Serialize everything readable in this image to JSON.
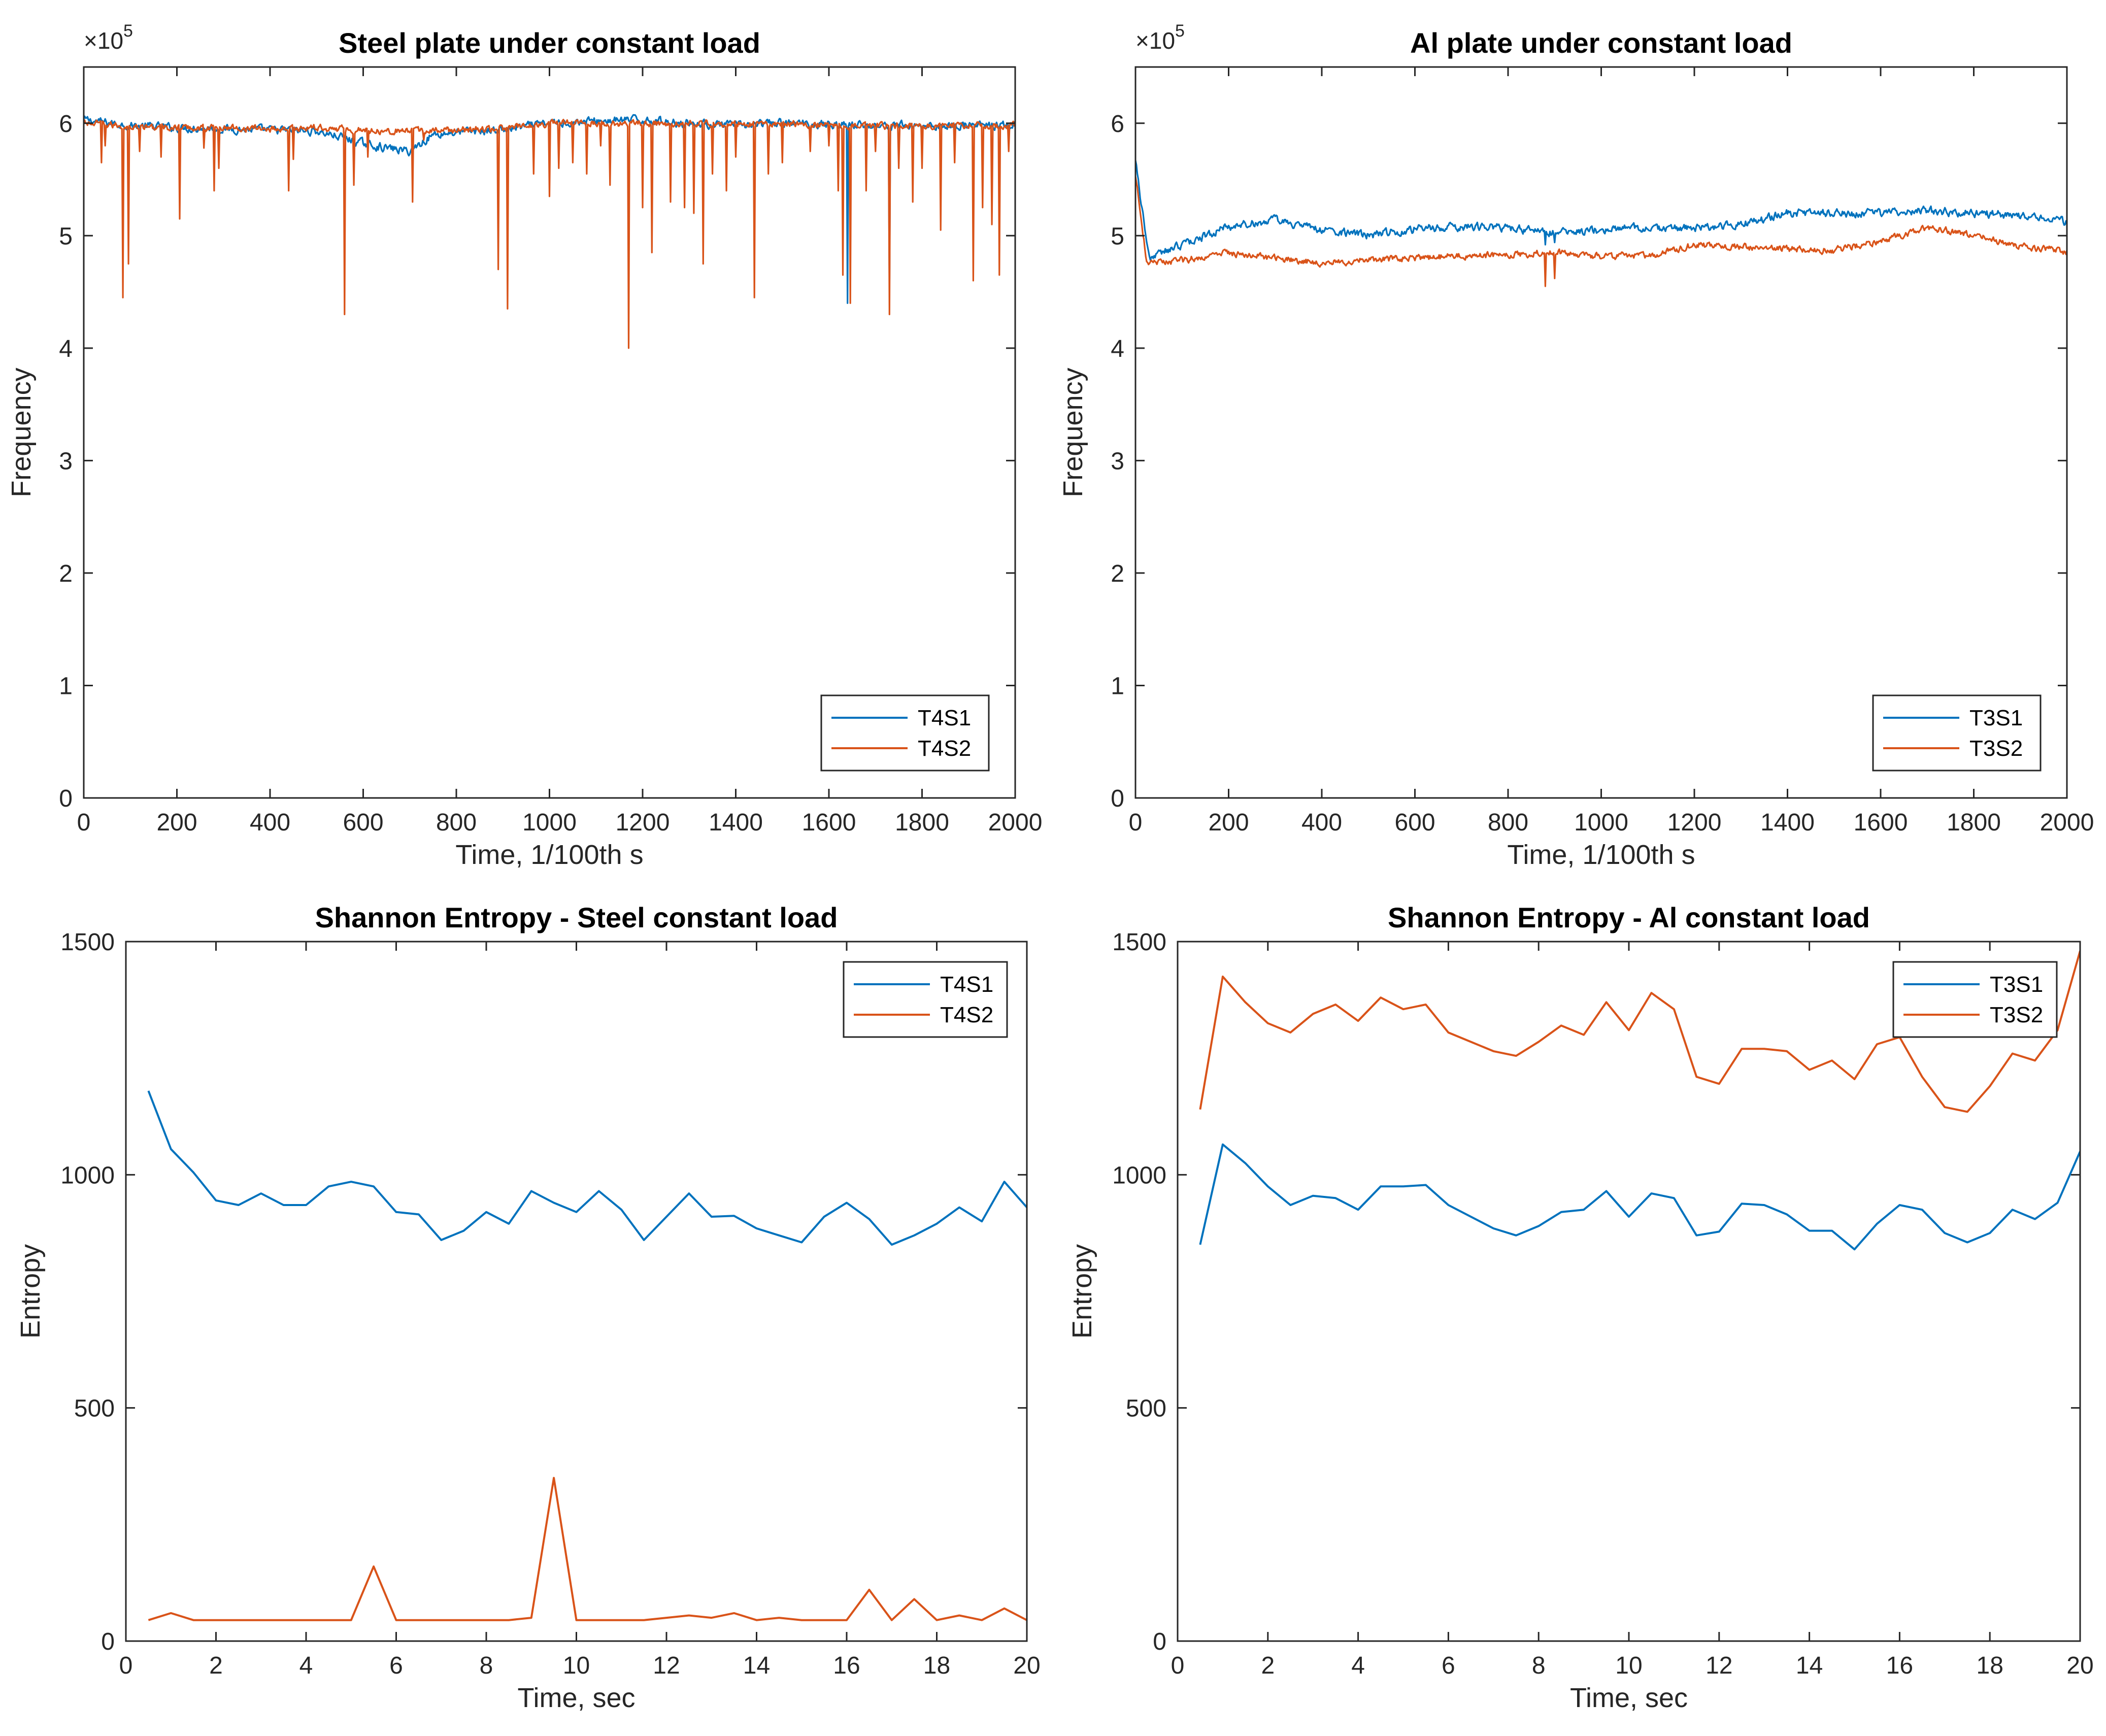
{
  "chart_data": [
    {
      "id": "p1",
      "type": "line",
      "title": "Steel plate under constant load",
      "xlabel": "Time, 1/100th s",
      "ylabel": "Frequency",
      "xlim": [
        0,
        2000
      ],
      "ylim": [
        0,
        650000
      ],
      "xticks": [
        "0",
        "200",
        "400",
        "600",
        "800",
        "1000",
        "1200",
        "1400",
        "1600",
        "1800",
        "2000"
      ],
      "yticks": [
        "0",
        "1",
        "2",
        "3",
        "4",
        "5",
        "6"
      ],
      "y_exponent": "×10⁵",
      "legend_position": "bottom-right",
      "series": [
        {
          "name": "T4S1",
          "color": "#0072BD",
          "baseline": [
            [
              0,
              603000
            ],
            [
              100,
              598000
            ],
            [
              200,
              596000
            ],
            [
              300,
              595000
            ],
            [
              400,
              594000
            ],
            [
              500,
              593000
            ],
            [
              550,
              588000
            ],
            [
              600,
              582000
            ],
            [
              650,
              578000
            ],
            [
              700,
              575000
            ],
            [
              750,
              590000
            ],
            [
              800,
              592000
            ],
            [
              900,
              594000
            ],
            [
              1000,
              600000
            ],
            [
              1100,
              602000
            ],
            [
              1200,
              603000
            ],
            [
              1300,
              600000
            ],
            [
              1400,
              598000
            ],
            [
              1500,
              600000
            ],
            [
              1600,
              599000
            ],
            [
              1700,
              598000
            ],
            [
              1800,
              598000
            ],
            [
              1900,
              598000
            ],
            [
              2000,
              598000
            ]
          ],
          "noise": 6000,
          "spikes": [
            [
              1640,
              440000
            ],
            [
              1730,
              450000
            ]
          ]
        },
        {
          "name": "T4S2",
          "color": "#D95319",
          "baseline": [
            [
              0,
              600000
            ],
            [
              100,
              597000
            ],
            [
              200,
              596000
            ],
            [
              300,
              596000
            ],
            [
              400,
              595000
            ],
            [
              500,
              596000
            ],
            [
              600,
              594000
            ],
            [
              700,
              593000
            ],
            [
              800,
              594000
            ],
            [
              900,
              595000
            ],
            [
              1000,
              600000
            ],
            [
              1100,
              600000
            ],
            [
              1200,
              600000
            ],
            [
              1300,
              600000
            ],
            [
              1400,
              600000
            ],
            [
              1500,
              599000
            ],
            [
              1600,
              599000
            ],
            [
              1700,
              598000
            ],
            [
              1800,
              598000
            ],
            [
              1900,
              598000
            ],
            [
              2000,
              598000
            ]
          ],
          "noise": 5000,
          "spikes": [
            [
              38,
              565000
            ],
            [
              45,
              580000
            ],
            [
              83,
              445000
            ],
            [
              95,
              475000
            ],
            [
              120,
              575000
            ],
            [
              165,
              570000
            ],
            [
              205,
              515000
            ],
            [
              258,
              578000
            ],
            [
              280,
              540000
            ],
            [
              290,
              560000
            ],
            [
              440,
              540000
            ],
            [
              450,
              568000
            ],
            [
              560,
              430000
            ],
            [
              580,
              545000
            ],
            [
              610,
              570000
            ],
            [
              705,
              530000
            ],
            [
              730,
              585000
            ],
            [
              890,
              470000
            ],
            [
              910,
              435000
            ],
            [
              965,
              555000
            ],
            [
              1000,
              535000
            ],
            [
              1020,
              560000
            ],
            [
              1050,
              565000
            ],
            [
              1080,
              555000
            ],
            [
              1110,
              580000
            ],
            [
              1130,
              545000
            ],
            [
              1170,
              400000
            ],
            [
              1200,
              525000
            ],
            [
              1220,
              485000
            ],
            [
              1260,
              530000
            ],
            [
              1290,
              525000
            ],
            [
              1310,
              520000
            ],
            [
              1330,
              475000
            ],
            [
              1350,
              555000
            ],
            [
              1380,
              540000
            ],
            [
              1400,
              570000
            ],
            [
              1440,
              445000
            ],
            [
              1470,
              555000
            ],
            [
              1500,
              565000
            ],
            [
              1560,
              575000
            ],
            [
              1600,
              580000
            ],
            [
              1620,
              540000
            ],
            [
              1630,
              465000
            ],
            [
              1645,
              440000
            ],
            [
              1680,
              540000
            ],
            [
              1700,
              575000
            ],
            [
              1730,
              430000
            ],
            [
              1750,
              560000
            ],
            [
              1780,
              530000
            ],
            [
              1800,
              560000
            ],
            [
              1840,
              505000
            ],
            [
              1870,
              565000
            ],
            [
              1910,
              460000
            ],
            [
              1930,
              525000
            ],
            [
              1950,
              510000
            ],
            [
              1965,
              465000
            ],
            [
              1985,
              575000
            ]
          ]
        }
      ]
    },
    {
      "id": "p2",
      "type": "line",
      "title": "Al plate under constant load",
      "xlabel": "Time, 1/100th s",
      "ylabel": "Frequency",
      "xlim": [
        0,
        2000
      ],
      "ylim": [
        0,
        650000
      ],
      "xticks": [
        "0",
        "200",
        "400",
        "600",
        "800",
        "1000",
        "1200",
        "1400",
        "1600",
        "1800",
        "2000"
      ],
      "yticks": [
        "0",
        "1",
        "2",
        "3",
        "4",
        "5",
        "6"
      ],
      "y_exponent": "×10⁵",
      "legend_position": "bottom-right",
      "series": [
        {
          "name": "T3S1",
          "color": "#0072BD",
          "baseline": [
            [
              0,
              570000
            ],
            [
              15,
              520000
            ],
            [
              30,
              480000
            ],
            [
              100,
              492000
            ],
            [
              200,
              508000
            ],
            [
              300,
              514000
            ],
            [
              400,
              505000
            ],
            [
              500,
              500000
            ],
            [
              600,
              506000
            ],
            [
              700,
              508000
            ],
            [
              800,
              507000
            ],
            [
              900,
              502000
            ],
            [
              1000,
              505000
            ],
            [
              1100,
              507000
            ],
            [
              1200,
              506000
            ],
            [
              1300,
              510000
            ],
            [
              1400,
              520000
            ],
            [
              1500,
              520000
            ],
            [
              1600,
              520000
            ],
            [
              1700,
              522000
            ],
            [
              1800,
              520000
            ],
            [
              1900,
              518000
            ],
            [
              2000,
              512000
            ]
          ],
          "noise": 6000,
          "spikes": [
            [
              880,
              492000
            ],
            [
              900,
              494000
            ]
          ]
        },
        {
          "name": "T3S2",
          "color": "#D95319",
          "baseline": [
            [
              0,
              555000
            ],
            [
              10,
              520000
            ],
            [
              25,
              475000
            ],
            [
              100,
              478000
            ],
            [
              200,
              485000
            ],
            [
              300,
              480000
            ],
            [
              400,
              476000
            ],
            [
              500,
              478000
            ],
            [
              600,
              480000
            ],
            [
              700,
              482000
            ],
            [
              800,
              483000
            ],
            [
              900,
              485000
            ],
            [
              1000,
              482000
            ],
            [
              1100,
              482000
            ],
            [
              1200,
              492000
            ],
            [
              1300,
              490000
            ],
            [
              1400,
              488000
            ],
            [
              1500,
              487000
            ],
            [
              1600,
              495000
            ],
            [
              1700,
              508000
            ],
            [
              1800,
              500000
            ],
            [
              1900,
              490000
            ],
            [
              2000,
              486000
            ]
          ],
          "noise": 5000,
          "spikes": [
            [
              880,
              455000
            ],
            [
              900,
              462000
            ]
          ]
        }
      ]
    },
    {
      "id": "p3",
      "type": "line",
      "title": "Shannon Entropy - Steel constant load",
      "xlabel": "Time, sec",
      "ylabel": "Entropy",
      "xlim": [
        0,
        20
      ],
      "ylim": [
        0,
        1500
      ],
      "xticks": [
        "0",
        "2",
        "4",
        "6",
        "8",
        "10",
        "12",
        "14",
        "16",
        "18",
        "20"
      ],
      "yticks": [
        "0",
        "500",
        "1000",
        "1500"
      ],
      "legend_position": "top-right",
      "x": [
        0.5,
        1,
        1.5,
        2,
        2.5,
        3,
        3.5,
        4,
        4.5,
        5,
        5.5,
        6,
        6.5,
        7,
        7.5,
        8,
        8.5,
        9,
        9.5,
        10,
        10.5,
        11,
        11.5,
        12,
        12.5,
        13,
        13.5,
        14,
        14.5,
        15,
        15.5,
        16,
        16.5,
        17,
        17.5,
        18,
        18.5,
        19,
        19.5,
        20
      ],
      "series": [
        {
          "name": "T4S1",
          "color": "#0072BD",
          "values": [
            1180,
            1055,
            1005,
            945,
            935,
            960,
            935,
            935,
            975,
            985,
            975,
            920,
            915,
            860,
            880,
            920,
            895,
            965,
            940,
            920,
            965,
            925,
            860,
            910,
            960,
            910,
            912,
            885,
            870,
            855,
            910,
            940,
            905,
            850,
            870,
            895,
            930,
            900,
            985,
            930
          ]
        },
        {
          "name": "T4S2",
          "color": "#D95319",
          "values": [
            45,
            60,
            45,
            45,
            45,
            45,
            45,
            45,
            45,
            45,
            160,
            45,
            45,
            45,
            45,
            45,
            45,
            50,
            350,
            45,
            45,
            45,
            45,
            50,
            55,
            50,
            60,
            45,
            50,
            45,
            45,
            45,
            110,
            45,
            90,
            45,
            55,
            45,
            70,
            45
          ]
        }
      ]
    },
    {
      "id": "p4",
      "type": "line",
      "title": "Shannon Entropy - Al constant load",
      "xlabel": "Time, sec",
      "ylabel": "Entropy",
      "xlim": [
        0,
        20
      ],
      "ylim": [
        0,
        1500
      ],
      "xticks": [
        "0",
        "2",
        "4",
        "6",
        "8",
        "10",
        "12",
        "14",
        "16",
        "18",
        "20"
      ],
      "yticks": [
        "0",
        "500",
        "1000",
        "1500"
      ],
      "legend_position": "top-right",
      "x": [
        0.5,
        1,
        1.5,
        2,
        2.5,
        3,
        3.5,
        4,
        4.5,
        5,
        5.5,
        6,
        6.5,
        7,
        7.5,
        8,
        8.5,
        9,
        9.5,
        10,
        10.5,
        11,
        11.5,
        12,
        12.5,
        13,
        13.5,
        14,
        14.5,
        15,
        15.5,
        16,
        16.5,
        17,
        17.5,
        18,
        18.5,
        19,
        19.5,
        20
      ],
      "series": [
        {
          "name": "T3S1",
          "color": "#0072BD",
          "values": [
            850,
            1065,
            1025,
            975,
            935,
            955,
            950,
            925,
            975,
            975,
            978,
            935,
            910,
            885,
            870,
            890,
            920,
            925,
            965,
            910,
            960,
            950,
            870,
            878,
            938,
            935,
            915,
            880,
            880,
            840,
            895,
            935,
            925,
            875,
            855,
            875,
            925,
            905,
            940,
            1050
          ]
        },
        {
          "name": "T3S2",
          "color": "#D95319",
          "values": [
            1140,
            1425,
            1370,
            1325,
            1305,
            1345,
            1365,
            1330,
            1380,
            1355,
            1365,
            1305,
            1285,
            1265,
            1255,
            1285,
            1320,
            1300,
            1370,
            1310,
            1390,
            1355,
            1210,
            1195,
            1270,
            1270,
            1265,
            1225,
            1245,
            1205,
            1280,
            1295,
            1210,
            1145,
            1135,
            1190,
            1260,
            1245,
            1310,
            1480
          ]
        }
      ]
    }
  ]
}
